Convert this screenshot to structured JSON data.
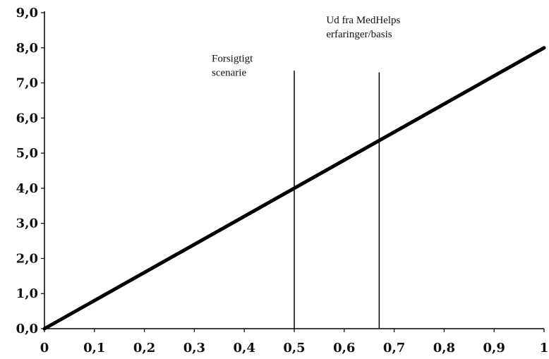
{
  "chart_data": {
    "type": "line",
    "title": "",
    "xlabel": "",
    "ylabel": "",
    "xlim": [
      0,
      1
    ],
    "ylim": [
      0,
      9
    ],
    "grid": false,
    "x_ticks": [
      {
        "value": 0,
        "label": "0"
      },
      {
        "value": 0.1,
        "label": "0,1"
      },
      {
        "value": 0.2,
        "label": "0,2"
      },
      {
        "value": 0.3,
        "label": "0,3"
      },
      {
        "value": 0.4,
        "label": "0,4"
      },
      {
        "value": 0.5,
        "label": "0,5"
      },
      {
        "value": 0.6,
        "label": "0,6"
      },
      {
        "value": 0.7,
        "label": "0,7"
      },
      {
        "value": 0.8,
        "label": "0,8"
      },
      {
        "value": 0.9,
        "label": "0,9"
      },
      {
        "value": 1,
        "label": "1"
      }
    ],
    "y_ticks": [
      {
        "value": 0,
        "label": "0,0"
      },
      {
        "value": 1,
        "label": "1,0"
      },
      {
        "value": 2,
        "label": "2,0"
      },
      {
        "value": 3,
        "label": "3,0"
      },
      {
        "value": 4,
        "label": "4,0"
      },
      {
        "value": 5,
        "label": "5,0"
      },
      {
        "value": 6,
        "label": "6,0"
      },
      {
        "value": 7,
        "label": "7,0"
      },
      {
        "value": 8,
        "label": "8,0"
      },
      {
        "value": 9,
        "label": "9,0"
      }
    ],
    "series": [
      {
        "x": [
          0,
          1
        ],
        "values": [
          0,
          8
        ],
        "color": "#000000"
      }
    ],
    "vertical_markers": [
      {
        "x": 0.5,
        "y_top": 7.35,
        "lines": [
          "Forsigtigt",
          "scenarie"
        ]
      },
      {
        "x": 0.67,
        "y_top": 7.3,
        "lines": [
          "Ud fra MedHelps",
          "erfaringer/basis"
        ]
      }
    ]
  }
}
